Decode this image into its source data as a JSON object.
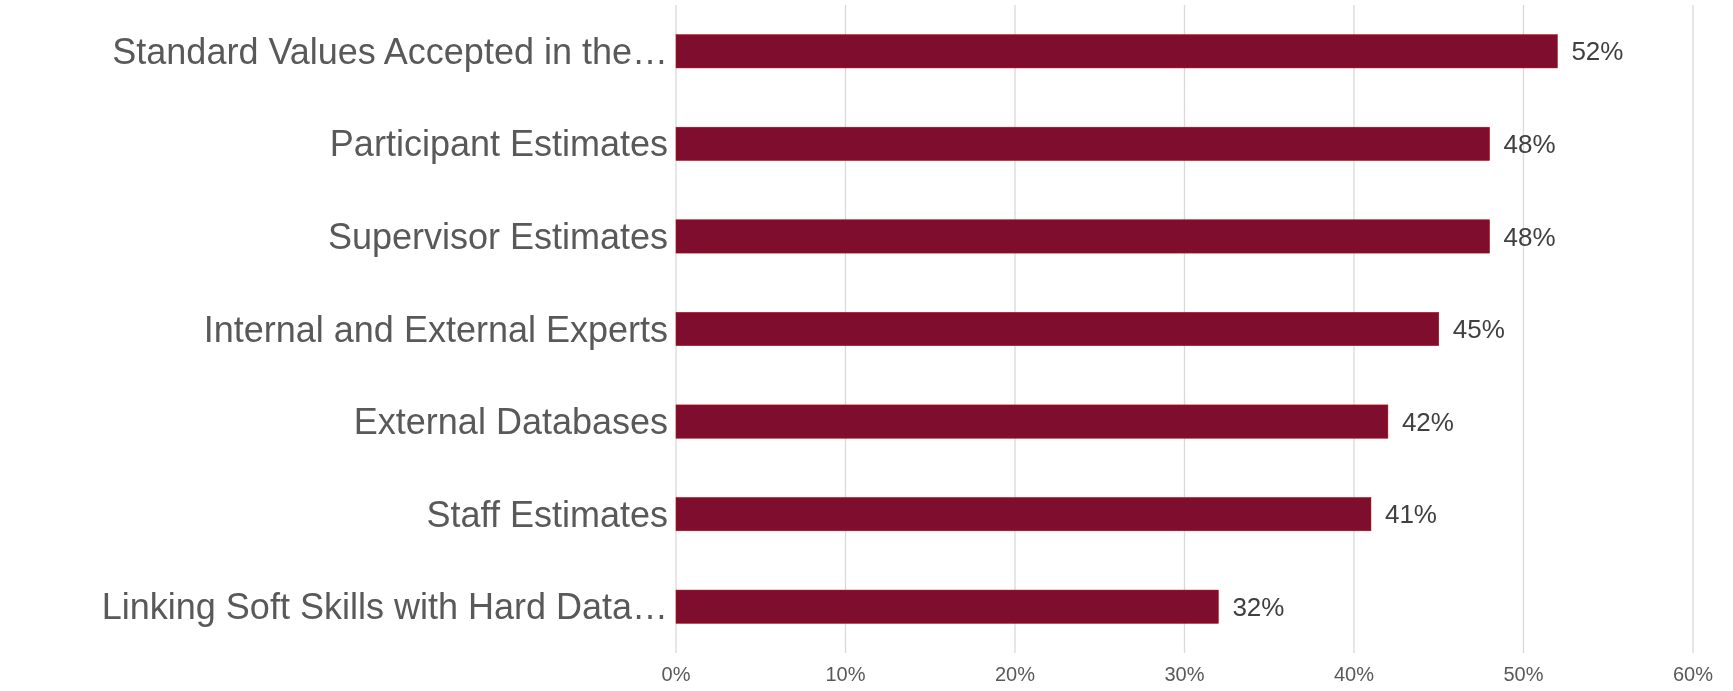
{
  "chart_data": {
    "type": "bar",
    "orientation": "horizontal",
    "categories": [
      "Standard Values Accepted in the…",
      "Participant Estimates",
      "Supervisor Estimates",
      "Internal and External Experts",
      "External Databases",
      "Staff Estimates",
      "Linking Soft Skills with Hard Data…"
    ],
    "values": [
      52,
      48,
      48,
      45,
      42,
      41,
      32
    ],
    "value_labels": [
      "52%",
      "48%",
      "48%",
      "45%",
      "42%",
      "41%",
      "32%"
    ],
    "color": "#7f0e2e",
    "xlim": [
      0,
      60
    ],
    "xticks": [
      {
        "value": 0,
        "label": "0%"
      },
      {
        "value": 10,
        "label": "10%"
      },
      {
        "value": 20,
        "label": "20%"
      },
      {
        "value": 30,
        "label": "30%"
      },
      {
        "value": 40,
        "label": "40%"
      },
      {
        "value": 50,
        "label": "50%"
      },
      {
        "value": 60,
        "label": "60%"
      }
    ],
    "grid": "x"
  }
}
